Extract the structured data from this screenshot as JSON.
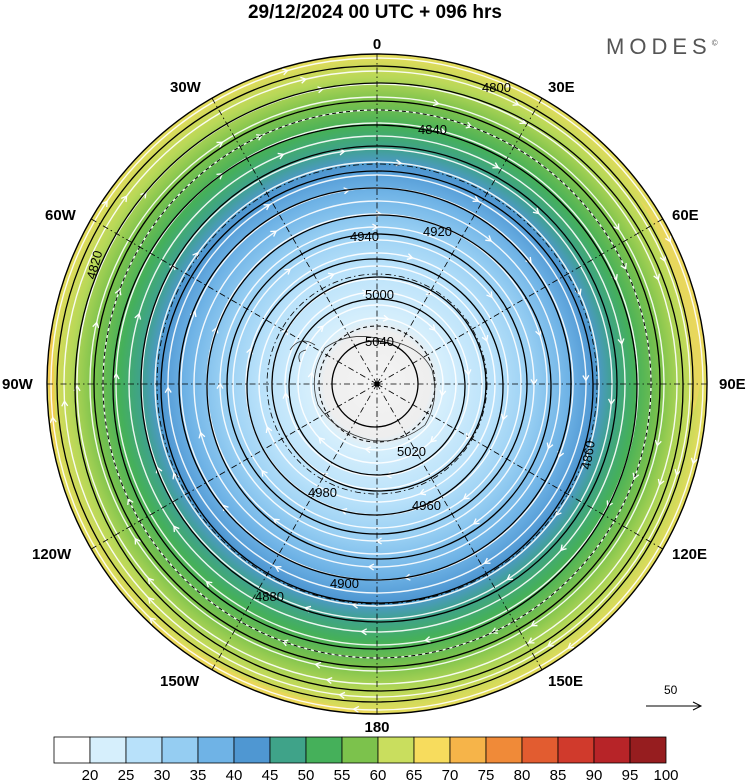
{
  "header": {
    "title": "29/12/2024  00 UTC  + 096 hrs",
    "brand": "MODES",
    "brand_mark": "©"
  },
  "map": {
    "projection": "south-polar-stereographic",
    "longitude_labels": {
      "lon_0": "0",
      "lon_30e": "30E",
      "lon_60e": "60E",
      "lon_90e": "90E",
      "lon_120e": "120E",
      "lon_150e": "150E",
      "lon_180": "180",
      "lon_150w": "150W",
      "lon_120w": "120W",
      "lon_90w": "90W",
      "lon_60w": "60W",
      "lon_30w": "30W"
    },
    "contour_labels": [
      {
        "id": "c4800",
        "text": "4800"
      },
      {
        "id": "c4820",
        "text": "4820"
      },
      {
        "id": "c4840",
        "text": "4840"
      },
      {
        "id": "c4860",
        "text": "4860"
      },
      {
        "id": "c4880",
        "text": "4880"
      },
      {
        "id": "c4900",
        "text": "4900"
      },
      {
        "id": "c4920",
        "text": "4920"
      },
      {
        "id": "c4940",
        "text": "4940"
      },
      {
        "id": "c4960",
        "text": "4960"
      },
      {
        "id": "c4980",
        "text": "4980"
      },
      {
        "id": "c5000",
        "text": "5000"
      },
      {
        "id": "c5020",
        "text": "5020"
      },
      {
        "id": "c5040",
        "text": "5040"
      }
    ],
    "wind_reference": {
      "value": "50",
      "icon": "arrow-right-icon"
    }
  },
  "colorbar": {
    "levels": [
      "20",
      "25",
      "30",
      "35",
      "40",
      "45",
      "50",
      "55",
      "60",
      "65",
      "70",
      "75",
      "80",
      "85",
      "90",
      "95",
      "100"
    ],
    "colors": [
      "#ffffff",
      "#d6effc",
      "#b8e1fa",
      "#95cdf2",
      "#6fb3e6",
      "#4f97d2",
      "#3fa389",
      "#45b05a",
      "#7cc24c",
      "#c9de5e",
      "#f7dc5d",
      "#f6b449",
      "#f08a38",
      "#e25c30",
      "#d03a2c",
      "#b72428",
      "#961d1f"
    ]
  }
}
